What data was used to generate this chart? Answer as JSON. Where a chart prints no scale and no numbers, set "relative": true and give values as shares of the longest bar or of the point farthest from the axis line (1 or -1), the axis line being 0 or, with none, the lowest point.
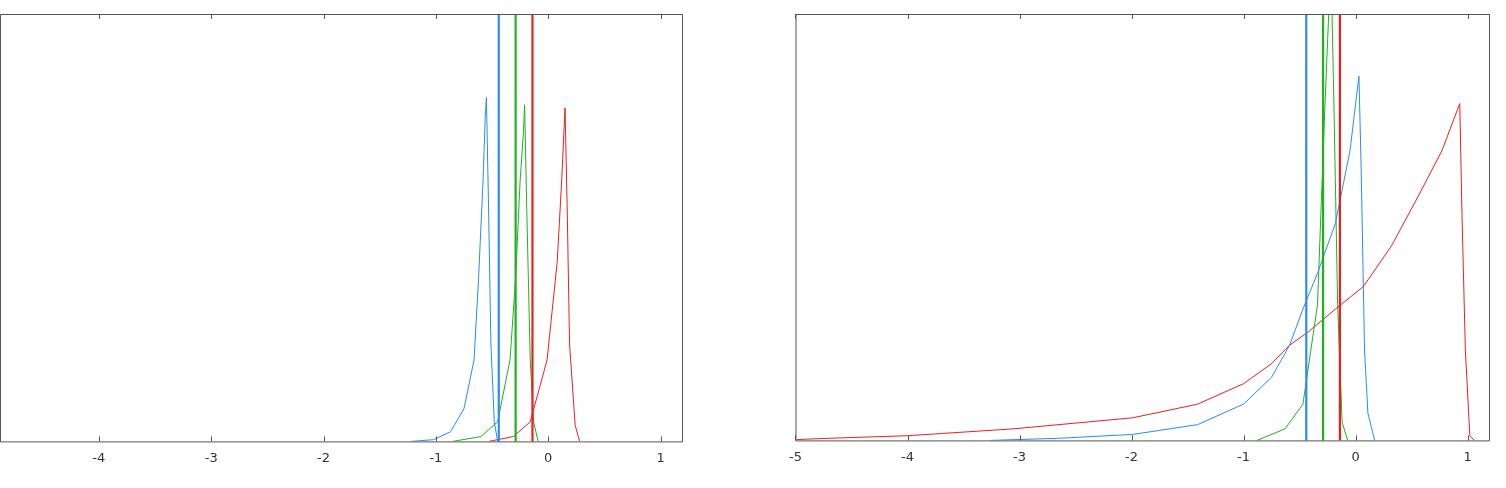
{
  "chart_data": [
    {
      "type": "line",
      "relative": true,
      "xlim": [
        -4.88,
        1.2
      ],
      "xticks": [
        -4,
        -3,
        -2,
        -1,
        0,
        1
      ],
      "series": [
        {
          "color": "#2a8cf0",
          "x": [
            -1.22,
            -1.02,
            -0.87,
            -0.75,
            -0.66,
            -0.62,
            -0.58,
            -0.56,
            -0.55,
            -0.53,
            -0.51,
            -0.48,
            -0.45
          ],
          "values": [
            0,
            0.005,
            0.028,
            0.095,
            0.237,
            0.474,
            0.758,
            0.948,
            1,
            0.664,
            0.284,
            0.057,
            0
          ]
        },
        {
          "color": "#1db31d",
          "x": [
            -0.85,
            -0.6,
            -0.45,
            -0.34,
            -0.29,
            -0.25,
            -0.22,
            -0.21,
            -0.19,
            -0.16,
            -0.13,
            -0.09
          ],
          "values": [
            0,
            0.014,
            0.057,
            0.237,
            0.474,
            0.758,
            0.9,
            0.979,
            0.664,
            0.237,
            0.057,
            0
          ]
        },
        {
          "color": "#e8201f",
          "x": [
            -0.53,
            -0.31,
            -0.16,
            -0.01,
            0.08,
            0.12,
            0.15,
            0.17,
            0.19,
            0.24,
            0.28
          ],
          "values": [
            0,
            0.014,
            0.057,
            0.237,
            0.521,
            0.758,
            0.97,
            0.664,
            0.284,
            0.047,
            0
          ]
        }
      ],
      "ref_lines": [
        {
          "axis": "x",
          "value": -0.44,
          "color": "#2a8cf0"
        },
        {
          "axis": "x",
          "value": -0.29,
          "color": "#1db31d"
        },
        {
          "axis": "x",
          "value": -0.14,
          "color": "#e8201f"
        }
      ]
    },
    {
      "type": "line",
      "relative": true,
      "xlim": [
        -5,
        1.2
      ],
      "xticks": [
        -5,
        -4,
        -3,
        -2,
        -1,
        0,
        1
      ],
      "series": [
        {
          "color": "#e8201f",
          "x": [
            -4.99,
            -4.7,
            -4.0,
            -3.06,
            -1.99,
            -1.41,
            -1.0,
            -0.75,
            -0.59,
            -0.42,
            -0.18,
            0.07,
            0.32,
            0.56,
            0.77,
            0.93,
            0.95,
            0.98,
            1.02,
            1.06
          ],
          "values": [
            0.002,
            0.005,
            0.011,
            0.027,
            0.053,
            0.085,
            0.133,
            0.18,
            0.223,
            0.255,
            0.308,
            0.361,
            0.456,
            0.573,
            0.679,
            0.79,
            0.53,
            0.212,
            0.011,
            0
          ]
        },
        {
          "color": "#2a8cf0",
          "x": [
            -3.26,
            -2.65,
            -1.99,
            -1.41,
            -1.0,
            -0.75,
            -0.59,
            -0.47,
            -0.34,
            -0.18,
            -0.05,
            0.03,
            0.05,
            0.08,
            0.11,
            0.17
          ],
          "values": [
            0,
            0.005,
            0.014,
            0.037,
            0.085,
            0.148,
            0.223,
            0.308,
            0.392,
            0.509,
            0.679,
            0.854,
            0.636,
            0.212,
            0.064,
            0
          ]
        },
        {
          "color": "#1db31d",
          "x": [
            -0.88,
            -0.63,
            -0.47,
            -0.34,
            -0.28,
            -0.24,
            -0.21,
            -0.19,
            -0.16,
            -0.12,
            -0.07
          ],
          "values": [
            0,
            0.027,
            0.085,
            0.318,
            0.742,
            1,
            1,
            0.742,
            0.318,
            0.042,
            0
          ]
        }
      ],
      "ref_lines": [
        {
          "axis": "x",
          "value": -0.44,
          "color": "#2a8cf0"
        },
        {
          "axis": "x",
          "value": -0.29,
          "color": "#1db31d"
        },
        {
          "axis": "x",
          "value": -0.14,
          "color": "#e8201f"
        }
      ]
    }
  ]
}
